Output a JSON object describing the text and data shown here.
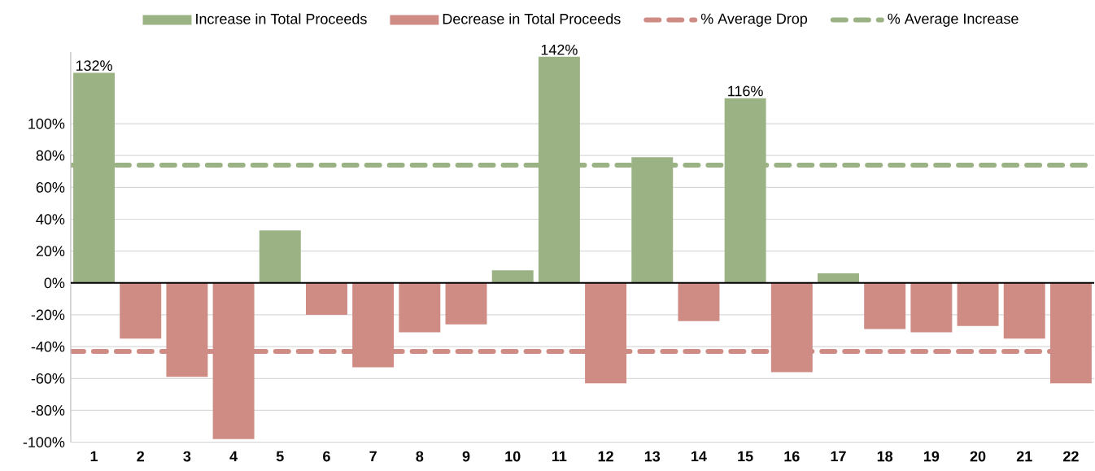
{
  "chart_data": {
    "type": "bar",
    "categories": [
      "1",
      "2",
      "3",
      "4",
      "5",
      "6",
      "7",
      "8",
      "9",
      "10",
      "11",
      "12",
      "13",
      "14",
      "15",
      "16",
      "17",
      "18",
      "19",
      "20",
      "21",
      "22"
    ],
    "series": [
      {
        "name": "Increase in Total Proceeds",
        "color": "#9bb384",
        "values": [
          132,
          null,
          null,
          null,
          33,
          null,
          null,
          null,
          null,
          8,
          142,
          null,
          79,
          null,
          116,
          null,
          6,
          null,
          null,
          null,
          null,
          null
        ],
        "value_labels": [
          "132%",
          null,
          null,
          null,
          null,
          null,
          null,
          null,
          null,
          null,
          "142%",
          null,
          null,
          null,
          "116%",
          null,
          null,
          null,
          null,
          null,
          null,
          null
        ]
      },
      {
        "name": "Decrease in Total Proceeds",
        "color": "#ce8c85",
        "values": [
          null,
          -35,
          -59,
          -98,
          null,
          -20,
          -53,
          -31,
          -26,
          null,
          null,
          -63,
          null,
          -24,
          null,
          -56,
          null,
          -29,
          -31,
          -27,
          -35,
          -63
        ]
      }
    ],
    "ref_lines": [
      {
        "axis": "y",
        "value": -43,
        "label": "% Average Drop",
        "color": "#ce8c85",
        "line_style": "dashed"
      },
      {
        "axis": "y",
        "value": 74,
        "label": "% Average Increase",
        "color": "#9bb384",
        "line_style": "dashed"
      }
    ],
    "ylim": [
      -100,
      145
    ],
    "yticks": [
      {
        "value": -100,
        "label": "-100%"
      },
      {
        "value": -80,
        "label": "-80%"
      },
      {
        "value": -60,
        "label": "-60%"
      },
      {
        "value": -40,
        "label": "-40%"
      },
      {
        "value": -20,
        "label": "-20%"
      },
      {
        "value": 0,
        "label": "0%"
      },
      {
        "value": 20,
        "label": "20%"
      },
      {
        "value": 40,
        "label": "40%"
      },
      {
        "value": 60,
        "label": "60%"
      },
      {
        "value": 80,
        "label": "80%"
      },
      {
        "value": 100,
        "label": "100%"
      }
    ],
    "grid": "y",
    "legend": "top"
  }
}
